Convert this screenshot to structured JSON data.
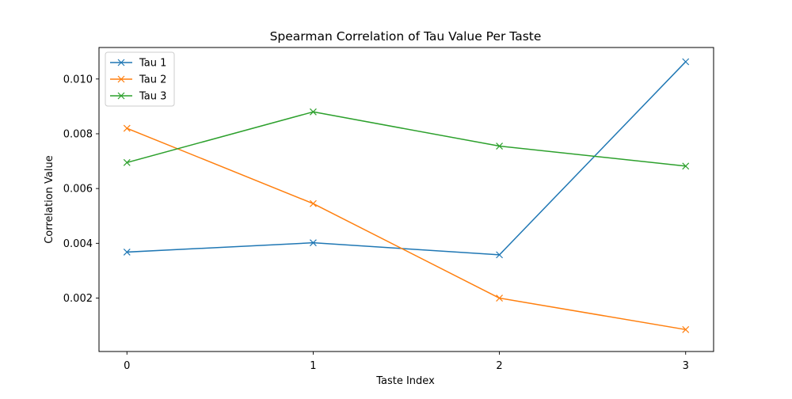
{
  "chart_data": {
    "type": "line",
    "title": "Spearman Correlation of Tau Value Per Taste",
    "xlabel": "Taste Index",
    "ylabel": "Correlation Value",
    "x": [
      0,
      1,
      2,
      3
    ],
    "xlim": [
      -0.15,
      3.15
    ],
    "ylim": [
      5e-05,
      0.01115
    ],
    "xticks": [
      0,
      1,
      2,
      3
    ],
    "xtick_labels": [
      "0",
      "1",
      "2",
      "3"
    ],
    "yticks": [
      0.002,
      0.004,
      0.006,
      0.008,
      0.01
    ],
    "ytick_labels": [
      "0.002",
      "0.004",
      "0.006",
      "0.008",
      "0.010"
    ],
    "grid": false,
    "legend_position": "upper-left",
    "marker": "x",
    "series": [
      {
        "name": "Tau 1",
        "color": "#1f77b4",
        "values": [
          0.00368,
          0.00402,
          0.00358,
          0.01063
        ]
      },
      {
        "name": "Tau 2",
        "color": "#ff7f0e",
        "values": [
          0.0082,
          0.00545,
          0.002,
          0.00085
        ]
      },
      {
        "name": "Tau 3",
        "color": "#2ca02c",
        "values": [
          0.00695,
          0.0088,
          0.00755,
          0.00682
        ]
      }
    ]
  }
}
